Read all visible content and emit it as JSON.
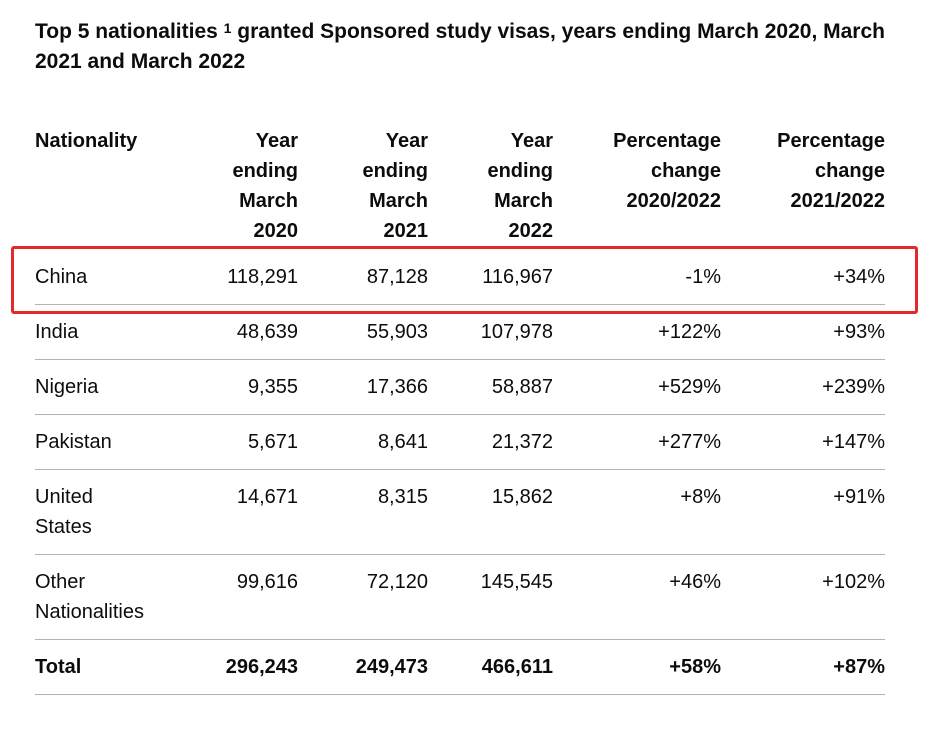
{
  "caption": {
    "prefix": "Top 5 nationalities",
    "footnote": "1",
    "suffix": " granted Sponsored study visas, years ending March 2020, March 2021 and March 2022"
  },
  "table": {
    "headers": [
      [
        "Nationality"
      ],
      [
        "Year",
        "ending",
        "March",
        "2020"
      ],
      [
        "Year",
        "ending",
        "March",
        "2021"
      ],
      [
        "Year",
        "ending",
        "March",
        "2022"
      ],
      [
        "Percentage",
        "change",
        "2020/2022"
      ],
      [
        "Percentage",
        "change",
        "2021/2022"
      ]
    ],
    "rows": [
      {
        "nationality": [
          "China"
        ],
        "y2020": "118,291",
        "y2021": "87,128",
        "y2022": "116,967",
        "pct2020_2022": "-1%",
        "pct2021_2022": "+34%"
      },
      {
        "nationality": [
          "India"
        ],
        "y2020": "48,639",
        "y2021": "55,903",
        "y2022": "107,978",
        "pct2020_2022": "+122%",
        "pct2021_2022": "+93%"
      },
      {
        "nationality": [
          "Nigeria"
        ],
        "y2020": "9,355",
        "y2021": "17,366",
        "y2022": "58,887",
        "pct2020_2022": "+529%",
        "pct2021_2022": "+239%"
      },
      {
        "nationality": [
          "Pakistan"
        ],
        "y2020": "5,671",
        "y2021": "8,641",
        "y2022": "21,372",
        "pct2020_2022": "+277%",
        "pct2021_2022": "+147%"
      },
      {
        "nationality": [
          "United",
          "States"
        ],
        "y2020": "14,671",
        "y2021": "8,315",
        "y2022": "15,862",
        "pct2020_2022": "+8%",
        "pct2021_2022": "+91%"
      },
      {
        "nationality": [
          "Other",
          "Nationalities"
        ],
        "y2020": "99,616",
        "y2021": "72,120",
        "y2022": "145,545",
        "pct2020_2022": "+46%",
        "pct2021_2022": "+102%"
      }
    ],
    "total": {
      "label": "Total",
      "y2020": "296,243",
      "y2021": "249,473",
      "y2022": "466,611",
      "pct2020_2022": "+58%",
      "pct2021_2022": "+87%"
    }
  },
  "highlight": {
    "row": "China",
    "color": "#e3292c"
  }
}
